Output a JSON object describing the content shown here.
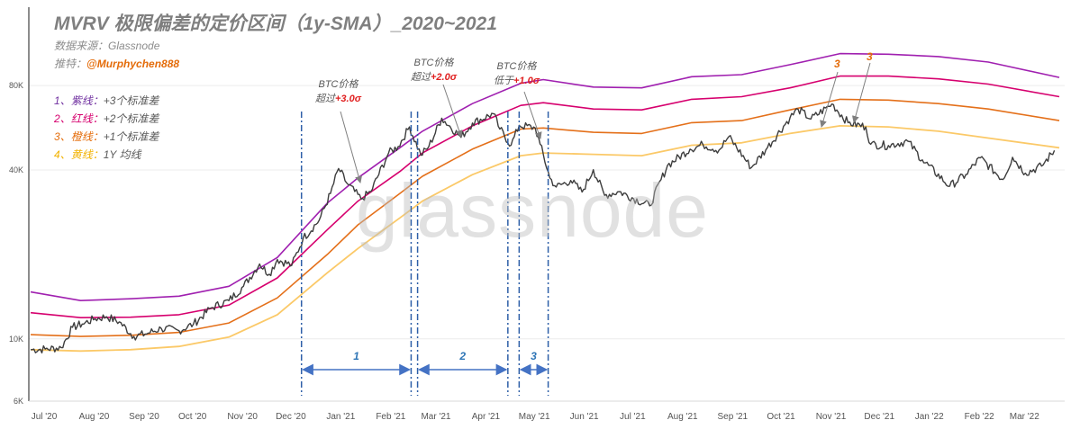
{
  "title": "MVRV 极限偏差的定价区间（1y-SMA）_2020~2021",
  "source_line": "数据来源：Glassnode",
  "twitter_prefix": "推特：",
  "twitter_handle": "@Murphychen888",
  "watermark": "glassnode",
  "legend": [
    {
      "num": "1、",
      "name": "紫线：",
      "rest": "+3个标准差",
      "color": "#7030a0"
    },
    {
      "num": "2、",
      "name": "红线：",
      "rest": "+2个标准差",
      "color": "#d6006e"
    },
    {
      "num": "3、",
      "name": "橙线：",
      "rest": "+1个标准差",
      "color": "#e46c0a"
    },
    {
      "num": "4、",
      "name": "黄线：",
      "rest": "1Y 均线",
      "color": "#f2b200"
    }
  ],
  "notes": [
    {
      "line1": "BTC价格",
      "prefix": "超过",
      "value": "+3.0σ"
    },
    {
      "line1": "BTC价格",
      "prefix": "超过",
      "value": "+2.0σ"
    },
    {
      "line1": "BTC价格",
      "prefix": "低于",
      "value": "+1.0σ"
    }
  ],
  "peak_marks": [
    "3",
    "3"
  ],
  "chart_data": {
    "type": "line",
    "y_scale": "log",
    "y_ticks": [
      "6K",
      "10K",
      "40K",
      "80K"
    ],
    "y_tick_values": [
      6000,
      10000,
      40000,
      80000
    ],
    "ylim": [
      6000,
      150000
    ],
    "x_range": [
      "2020-07-01",
      "2022-03-31"
    ],
    "x_ticks": [
      {
        "date": "2020-07-01",
        "label": "Jul '20"
      },
      {
        "date": "2020-08-01",
        "label": "Aug '20"
      },
      {
        "date": "2020-09-01",
        "label": "Sep '20"
      },
      {
        "date": "2020-10-01",
        "label": "Oct '20"
      },
      {
        "date": "2020-11-01",
        "label": "Nov '20"
      },
      {
        "date": "2020-12-01",
        "label": "Dec '20"
      },
      {
        "date": "2021-01-01",
        "label": "Jan '21"
      },
      {
        "date": "2021-02-01",
        "label": "Feb '21"
      },
      {
        "date": "2021-03-01",
        "label": "Mar '21"
      },
      {
        "date": "2021-04-01",
        "label": "Apr '21"
      },
      {
        "date": "2021-05-01",
        "label": "May '21"
      },
      {
        "date": "2021-06-01",
        "label": "Jun '21"
      },
      {
        "date": "2021-07-01",
        "label": "Jul '21"
      },
      {
        "date": "2021-08-01",
        "label": "Aug '21"
      },
      {
        "date": "2021-09-01",
        "label": "Sep '21"
      },
      {
        "date": "2021-10-01",
        "label": "Oct '21"
      },
      {
        "date": "2021-11-01",
        "label": "Nov '21"
      },
      {
        "date": "2021-12-01",
        "label": "Dec '21"
      },
      {
        "date": "2022-01-01",
        "label": "Jan '22"
      },
      {
        "date": "2022-02-01",
        "label": "Feb '22"
      },
      {
        "date": "2022-03-01",
        "label": "Mar '22"
      }
    ],
    "series": [
      {
        "key": "plus3",
        "color": "#a020b0",
        "width": 1.6,
        "points": [
          [
            "2020-07-01",
            14700
          ],
          [
            "2020-08-01",
            13700
          ],
          [
            "2020-09-01",
            13900
          ],
          [
            "2020-10-01",
            14200
          ],
          [
            "2020-11-01",
            15400
          ],
          [
            "2020-12-01",
            19500
          ],
          [
            "2021-01-01",
            30500
          ],
          [
            "2021-01-20",
            37500
          ],
          [
            "2021-02-15",
            48000
          ],
          [
            "2021-03-01",
            55000
          ],
          [
            "2021-04-01",
            69000
          ],
          [
            "2021-05-01",
            81500
          ],
          [
            "2021-05-15",
            84000
          ],
          [
            "2021-06-15",
            79000
          ],
          [
            "2021-07-15",
            78500
          ],
          [
            "2021-08-15",
            86000
          ],
          [
            "2021-09-15",
            87500
          ],
          [
            "2021-10-15",
            95000
          ],
          [
            "2021-11-15",
            104000
          ],
          [
            "2021-12-15",
            103500
          ],
          [
            "2022-01-15",
            101500
          ],
          [
            "2022-02-15",
            97000
          ],
          [
            "2022-03-31",
            85500
          ]
        ]
      },
      {
        "key": "plus2",
        "color": "#d6006e",
        "width": 1.6,
        "points": [
          [
            "2020-07-01",
            12400
          ],
          [
            "2020-08-01",
            11900
          ],
          [
            "2020-09-01",
            11950
          ],
          [
            "2020-10-01",
            12200
          ],
          [
            "2020-11-01",
            13200
          ],
          [
            "2020-12-01",
            16500
          ],
          [
            "2021-01-01",
            24500
          ],
          [
            "2021-01-20",
            31000
          ],
          [
            "2021-02-15",
            39500
          ],
          [
            "2021-03-01",
            46000
          ],
          [
            "2021-04-01",
            57500
          ],
          [
            "2021-05-01",
            68000
          ],
          [
            "2021-05-15",
            69500
          ],
          [
            "2021-06-15",
            66000
          ],
          [
            "2021-07-15",
            65500
          ],
          [
            "2021-08-15",
            71500
          ],
          [
            "2021-09-15",
            73000
          ],
          [
            "2021-10-15",
            78500
          ],
          [
            "2021-11-15",
            86500
          ],
          [
            "2021-12-15",
            86500
          ],
          [
            "2022-01-15",
            84500
          ],
          [
            "2022-02-15",
            81000
          ],
          [
            "2022-03-31",
            73000
          ]
        ]
      },
      {
        "key": "plus1",
        "color": "#e4701a",
        "width": 1.6,
        "points": [
          [
            "2020-07-01",
            10350
          ],
          [
            "2020-08-01",
            10200
          ],
          [
            "2020-09-01",
            10300
          ],
          [
            "2020-10-01",
            10550
          ],
          [
            "2020-11-01",
            11400
          ],
          [
            "2020-12-01",
            14000
          ],
          [
            "2021-01-01",
            20000
          ],
          [
            "2021-01-20",
            25500
          ],
          [
            "2021-02-15",
            33000
          ],
          [
            "2021-03-01",
            38000
          ],
          [
            "2021-04-01",
            47500
          ],
          [
            "2021-05-01",
            56000
          ],
          [
            "2021-05-15",
            56500
          ],
          [
            "2021-06-15",
            54500
          ],
          [
            "2021-07-15",
            54000
          ],
          [
            "2021-08-15",
            59000
          ],
          [
            "2021-09-15",
            60000
          ],
          [
            "2021-10-15",
            65500
          ],
          [
            "2021-11-15",
            71500
          ],
          [
            "2021-12-15",
            71000
          ],
          [
            "2022-01-15",
            69000
          ],
          [
            "2022-02-15",
            66000
          ],
          [
            "2022-03-31",
            60000
          ]
        ]
      },
      {
        "key": "sma",
        "color": "#fbc968",
        "width": 1.8,
        "points": [
          [
            "2020-07-01",
            9150
          ],
          [
            "2020-08-01",
            9050
          ],
          [
            "2020-09-01",
            9150
          ],
          [
            "2020-10-01",
            9400
          ],
          [
            "2020-11-01",
            10150
          ],
          [
            "2020-12-01",
            12200
          ],
          [
            "2021-01-01",
            17200
          ],
          [
            "2021-01-20",
            21000
          ],
          [
            "2021-02-15",
            27000
          ],
          [
            "2021-03-01",
            31000
          ],
          [
            "2021-04-01",
            38500
          ],
          [
            "2021-05-01",
            45000
          ],
          [
            "2021-05-15",
            46000
          ],
          [
            "2021-06-15",
            45500
          ],
          [
            "2021-07-15",
            45000
          ],
          [
            "2021-08-15",
            49000
          ],
          [
            "2021-09-15",
            50000
          ],
          [
            "2021-10-15",
            54000
          ],
          [
            "2021-11-15",
            57500
          ],
          [
            "2021-12-15",
            57000
          ],
          [
            "2022-01-15",
            55000
          ],
          [
            "2022-02-15",
            52000
          ],
          [
            "2022-03-31",
            48000
          ]
        ]
      },
      {
        "key": "price",
        "color": "#3d3d3d",
        "width": 1.4,
        "points": [
          [
            "2020-07-01",
            9150
          ],
          [
            "2020-07-10",
            9200
          ],
          [
            "2020-07-20",
            9300
          ],
          [
            "2020-07-27",
            11000
          ],
          [
            "2020-08-02",
            11300
          ],
          [
            "2020-08-10",
            11800
          ],
          [
            "2020-08-17",
            12000
          ],
          [
            "2020-08-25",
            11500
          ],
          [
            "2020-09-03",
            10200
          ],
          [
            "2020-09-10",
            10400
          ],
          [
            "2020-09-20",
            10900
          ],
          [
            "2020-10-01",
            10700
          ],
          [
            "2020-10-10",
            11300
          ],
          [
            "2020-10-21",
            12900
          ],
          [
            "2020-11-01",
            13700
          ],
          [
            "2020-11-10",
            15400
          ],
          [
            "2020-11-20",
            18500
          ],
          [
            "2020-11-26",
            17000
          ],
          [
            "2020-12-01",
            19200
          ],
          [
            "2020-12-10",
            18300
          ],
          [
            "2020-12-17",
            22800
          ],
          [
            "2020-12-27",
            26500
          ],
          [
            "2021-01-03",
            33000
          ],
          [
            "2021-01-08",
            40500
          ],
          [
            "2021-01-13",
            36000
          ],
          [
            "2021-01-22",
            31500
          ],
          [
            "2021-01-28",
            33500
          ],
          [
            "2021-02-08",
            46000
          ],
          [
            "2021-02-14",
            48500
          ],
          [
            "2021-02-21",
            57000
          ],
          [
            "2021-02-28",
            45200
          ],
          [
            "2021-03-05",
            48500
          ],
          [
            "2021-03-13",
            61200
          ],
          [
            "2021-03-25",
            52300
          ],
          [
            "2021-04-01",
            58800
          ],
          [
            "2021-04-14",
            63500
          ],
          [
            "2021-04-18",
            56000
          ],
          [
            "2021-04-25",
            49000
          ],
          [
            "2021-04-30",
            57700
          ],
          [
            "2021-05-10",
            56500
          ],
          [
            "2021-05-13",
            49500
          ],
          [
            "2021-05-19",
            37500
          ],
          [
            "2021-05-23",
            34800
          ],
          [
            "2021-06-01",
            36700
          ],
          [
            "2021-06-08",
            33400
          ],
          [
            "2021-06-15",
            40100
          ],
          [
            "2021-06-22",
            32500
          ],
          [
            "2021-07-01",
            33500
          ],
          [
            "2021-07-20",
            29800
          ],
          [
            "2021-07-31",
            41500
          ],
          [
            "2021-08-14",
            47500
          ],
          [
            "2021-08-22",
            49300
          ],
          [
            "2021-09-01",
            47100
          ],
          [
            "2021-09-07",
            52600
          ],
          [
            "2021-09-21",
            40800
          ],
          [
            "2021-10-01",
            48100
          ],
          [
            "2021-10-15",
            61500
          ],
          [
            "2021-10-20",
            65900
          ],
          [
            "2021-10-28",
            60800
          ],
          [
            "2021-11-08",
            67500
          ],
          [
            "2021-11-10",
            68800
          ],
          [
            "2021-11-20",
            59000
          ],
          [
            "2021-12-01",
            57000
          ],
          [
            "2021-12-04",
            49400
          ],
          [
            "2021-12-15",
            48900
          ],
          [
            "2021-12-27",
            50700
          ],
          [
            "2022-01-05",
            43500
          ],
          [
            "2022-01-22",
            35000
          ],
          [
            "2022-02-01",
            38500
          ],
          [
            "2022-02-10",
            44200
          ],
          [
            "2022-02-24",
            37000
          ],
          [
            "2022-03-02",
            44400
          ],
          [
            "2022-03-10",
            39000
          ],
          [
            "2022-03-20",
            41300
          ],
          [
            "2022-03-28",
            47000
          ]
        ]
      }
    ],
    "vlines": [
      "2020-12-16",
      "2021-02-22",
      "2021-02-26",
      "2021-04-23",
      "2021-04-30",
      "2021-05-18"
    ],
    "ranges": [
      {
        "label": "1",
        "from": "2020-12-16",
        "to": "2021-02-22"
      },
      {
        "label": "2",
        "from": "2021-02-26",
        "to": "2021-04-23"
      },
      {
        "label": "3",
        "from": "2021-04-30",
        "to": "2021-05-18"
      }
    ]
  }
}
